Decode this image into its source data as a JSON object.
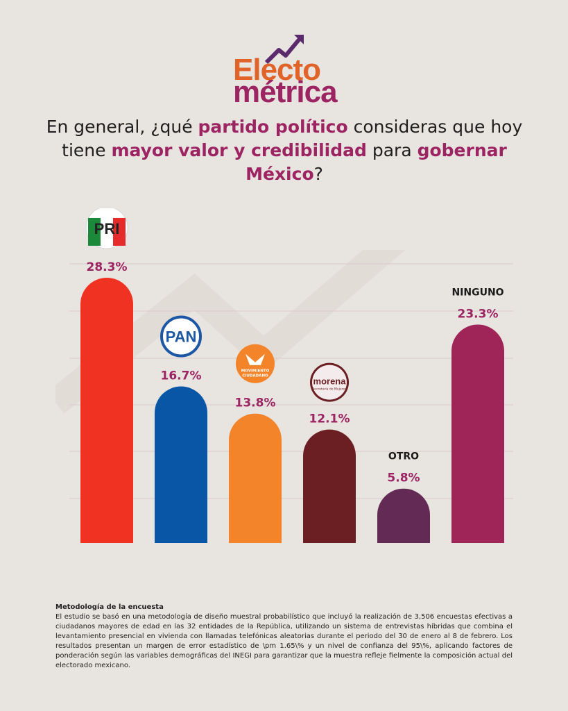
{
  "brand": {
    "name_part1": "Electo",
    "name_part2": "métrica",
    "color_primary": "#e0632a",
    "color_secondary": "#9c2463"
  },
  "question": {
    "part1": "En general, ¿qué ",
    "highlight1": "partido político",
    "part2": " consideras que hoy tiene ",
    "highlight2": "mayor valor y credibilidad",
    "part3": " para ",
    "highlight3": "gobernar México",
    "part4": "?"
  },
  "chart_data": {
    "type": "bar",
    "categories": [
      "PRI",
      "PAN",
      "MOVIMIENTO CIUDADANO",
      "morena",
      "OTRO",
      "NINGUNO"
    ],
    "values": [
      28.3,
      16.7,
      13.8,
      12.1,
      5.8,
      23.3
    ],
    "value_labels": [
      "28.3%",
      "16.7%",
      "13.8%",
      "12.1%",
      "5.8%",
      "23.3%"
    ],
    "printed_category_labels": [
      "",
      "",
      "",
      "",
      "OTRO",
      "NINGUNO"
    ],
    "colors": [
      "#f03222",
      "#0a56a6",
      "#f3842a",
      "#6b1f22",
      "#622a55",
      "#9f2458"
    ],
    "grid": true,
    "ylim": [
      0,
      30
    ]
  },
  "logos": {
    "pri": "PRI",
    "pan": "PAN",
    "mc_line1": "MOVIMIENTO",
    "mc_line2": "CIUDADANO",
    "morena_name": "morena",
    "morena_sub": "Secretaría de Mujeres"
  },
  "methodology": {
    "title": "Metodología de la encuesta",
    "body": "El estudio se basó en una metodología de diseño muestral probabilístico que incluyó la realización de 3,506 encuestas efectivas a ciudadanos mayores de edad en las 32 entidades de la República, utilizando un sistema de entrevistas híbridas que combina el levantamiento presencial en vivienda con llamadas telefónicas aleatorias durante el periodo del 30 de enero al 8 de febrero. Los resultados presentan un margen de error estadístico de \\pm 1.65\\% y un nivel de confianza del 95\\%, aplicando factores de ponderación según las variables demográficas del INEGI para garantizar que la muestra refleje fielmente la composición actual del electorado mexicano."
  }
}
